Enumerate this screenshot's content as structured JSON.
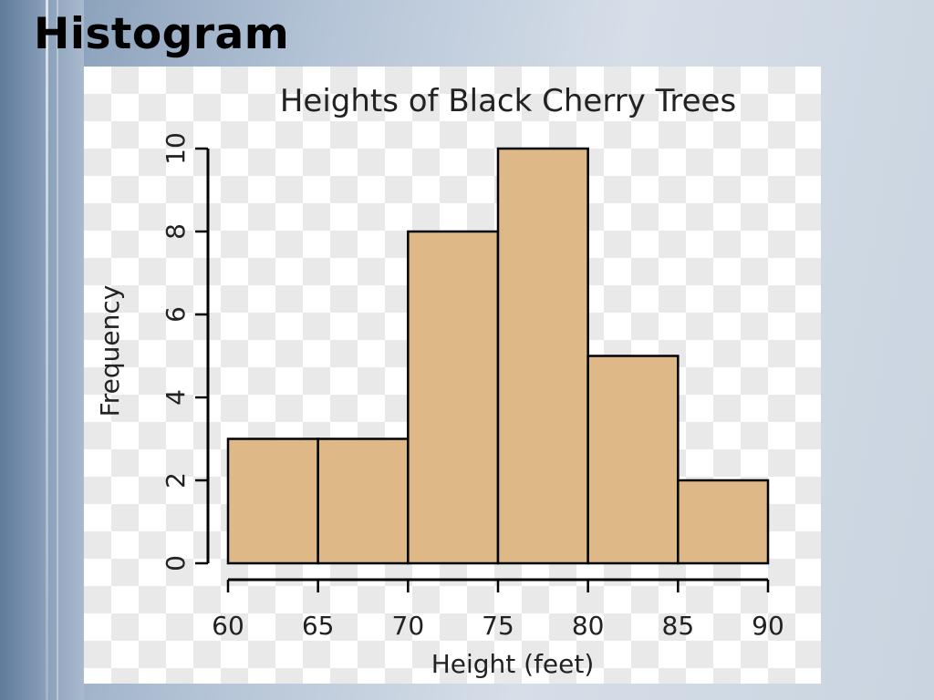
{
  "slide": {
    "title": "Histogram"
  },
  "colors": {
    "bar_fill": "#deb887",
    "bar_stroke": "#000000"
  },
  "chart_data": {
    "type": "bar",
    "title": "Heights of Black Cherry Trees",
    "xlabel": "Height (feet)",
    "ylabel": "Frequency",
    "bins": [
      [
        60,
        65
      ],
      [
        65,
        70
      ],
      [
        70,
        75
      ],
      [
        75,
        80
      ],
      [
        80,
        85
      ],
      [
        85,
        90
      ]
    ],
    "values": [
      3,
      3,
      8,
      10,
      5,
      2
    ],
    "xticks": [
      "60",
      "65",
      "70",
      "75",
      "80",
      "85",
      "90"
    ],
    "yticks": [
      "0",
      "2",
      "4",
      "6",
      "8",
      "10"
    ],
    "xlim": [
      60,
      90
    ],
    "ylim": [
      0,
      10
    ],
    "grid": false,
    "legend": "none"
  }
}
